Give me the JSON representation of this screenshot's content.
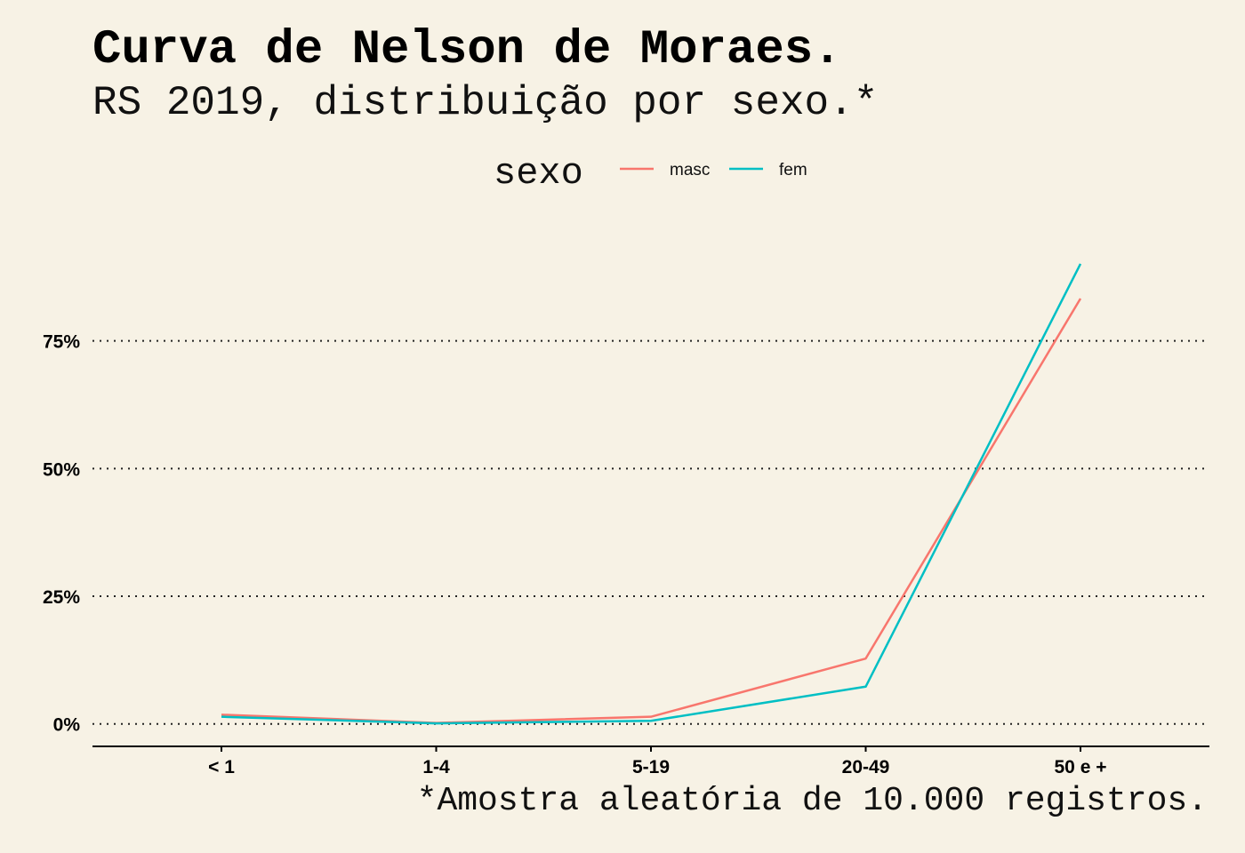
{
  "chart_data": {
    "type": "line",
    "title": "Curva de Nelson de Moraes.",
    "subtitle": "RS 2019, distribuição por sexo.*",
    "caption": "*Amostra aleatória de 10.000 registros.",
    "categories": [
      "< 1",
      "1-4",
      "5-19",
      "20-49",
      "50 e +"
    ],
    "series": [
      {
        "name": "masc",
        "color": "#f8766d",
        "values": [
          1.8,
          0.2,
          1.4,
          12.8,
          83.3
        ]
      },
      {
        "name": "fem",
        "color": "#00bfc4",
        "values": [
          1.4,
          0.1,
          0.6,
          7.3,
          90.1
        ]
      }
    ],
    "legend": {
      "title": "sexo",
      "position": "top"
    },
    "ylim": [
      -4.4,
      100
    ],
    "yticks": [
      0,
      25,
      50,
      75
    ],
    "ytick_labels": [
      "0%",
      "25%",
      "50%",
      "75%"
    ],
    "xlabel": "",
    "ylabel": "",
    "grid": "horizontal dotted"
  }
}
